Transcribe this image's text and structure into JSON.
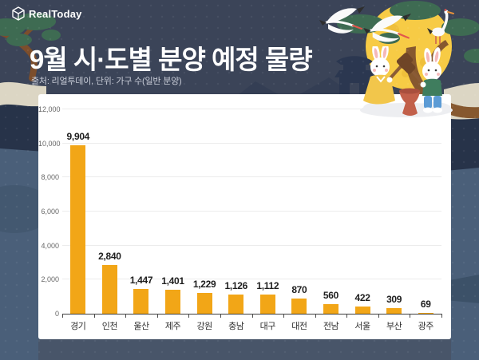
{
  "logo": {
    "text": "RealToday"
  },
  "header": {
    "title": "9월 시·도별 분양 예정 물량",
    "subtitle": "출처: 리얼투데이, 단위: 가구 수(일반 분양)"
  },
  "chart_data": {
    "type": "bar",
    "title": "9월 시·도별 분양 예정 물량",
    "xlabel": "",
    "ylabel": "",
    "categories": [
      "경기",
      "인천",
      "울산",
      "제주",
      "강원",
      "충남",
      "대구",
      "대전",
      "전남",
      "서울",
      "부산",
      "광주"
    ],
    "values": [
      9904,
      2840,
      1447,
      1401,
      1229,
      1126,
      1112,
      870,
      560,
      422,
      309,
      69
    ],
    "value_labels": [
      "9,904",
      "2,840",
      "1,447",
      "1,401",
      "1,229",
      "1,126",
      "1,112",
      "870",
      "560",
      "422",
      "309",
      "69"
    ],
    "ylim": [
      0,
      12000
    ],
    "yticks": [
      0,
      2000,
      4000,
      6000,
      8000,
      10000,
      12000
    ],
    "ytick_labels": [
      "0",
      "2,000",
      "4,000",
      "6,000",
      "8,000",
      "10,000",
      "12,000"
    ],
    "grid": true,
    "legend": false,
    "bar_color": "#F2A617"
  },
  "colors": {
    "background": "#3B4458",
    "panel": "#FFFFFF",
    "bar": "#F2A617",
    "moon": "#F7CB45",
    "title_text": "#FFFFFF",
    "subtitle_text": "#C9CDD8"
  },
  "decorations": {
    "moon": "full-moon",
    "pine_left": "pine-branch",
    "pine_right": "pine-branch-with-crane",
    "flying_cranes": "two-flying-cranes",
    "gate": "korean-gate-silhouette",
    "rabbits": "moon-rabbits-pounding-rice-cake"
  }
}
